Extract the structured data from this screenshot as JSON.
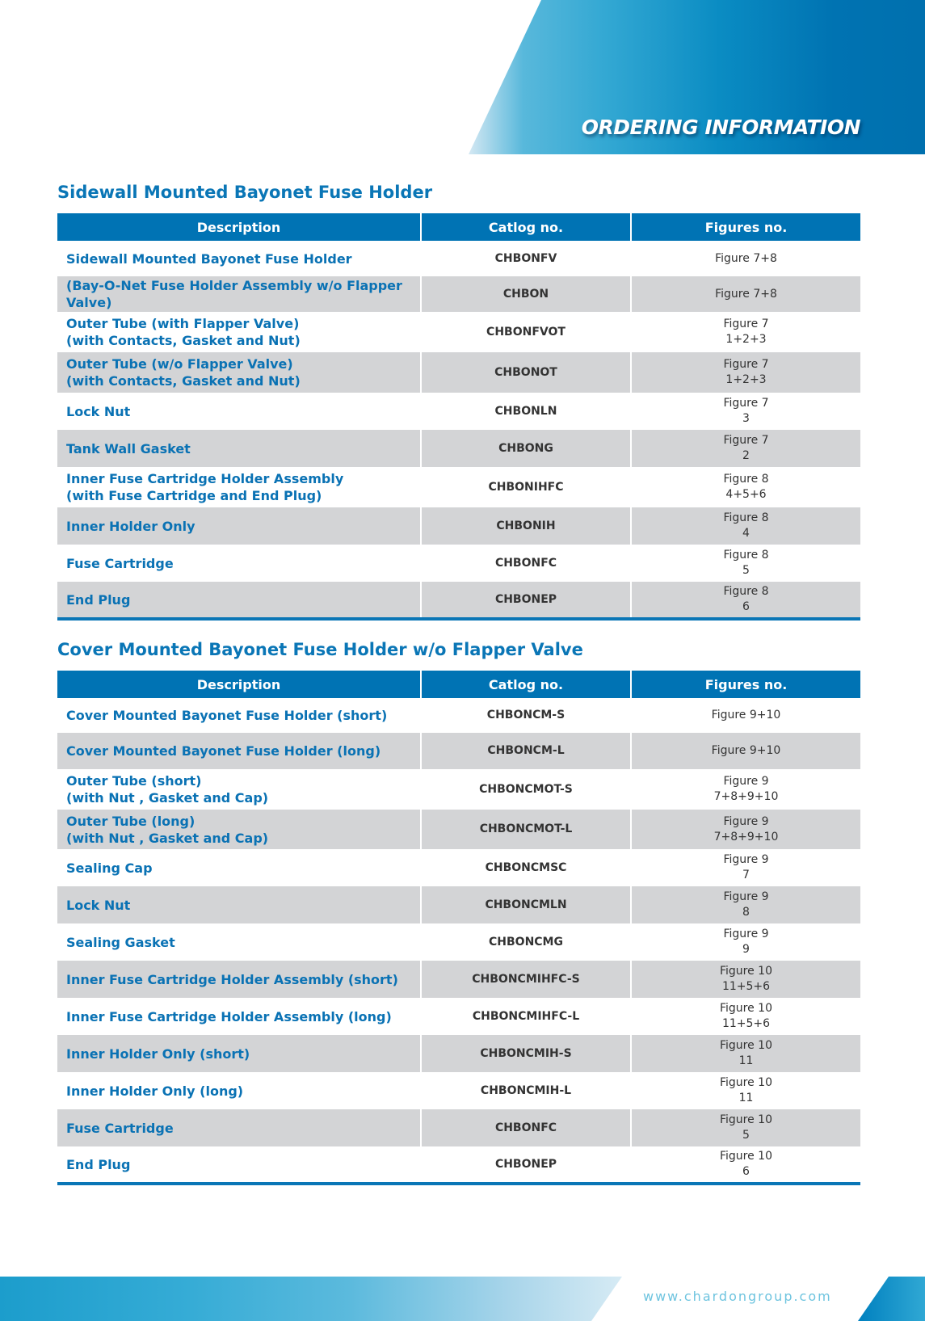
{
  "header": {
    "title": "ORDERING INFORMATION"
  },
  "colors": {
    "brand_blue": "#0073b4",
    "row_gray": "#d3d4d6"
  },
  "columns": [
    "Description",
    "Catlog no.",
    "Figures no."
  ],
  "tables": [
    {
      "title": "Sidewall Mounted Bayonet Fuse Holder",
      "rows": [
        {
          "desc": [
            "Sidewall Mounted Bayonet Fuse Holder"
          ],
          "cat": "CHBONFV",
          "fig": [
            "Figure 7+8"
          ]
        },
        {
          "desc": [
            "(Bay-O-Net Fuse Holder Assembly w/o Flapper Valve)"
          ],
          "cat": "CHBON",
          "fig": [
            "Figure 7+8"
          ]
        },
        {
          "desc": [
            "Outer Tube (with Flapper Valve)",
            "(with Contacts, Gasket and Nut)"
          ],
          "cat": "CHBONFVOT",
          "fig": [
            "Figure 7",
            "1+2+3"
          ]
        },
        {
          "desc": [
            "Outer Tube (w/o Flapper Valve)",
            "(with Contacts, Gasket and Nut)"
          ],
          "cat": "CHBONOT",
          "fig": [
            "Figure 7",
            "1+2+3"
          ]
        },
        {
          "desc": [
            "Lock Nut"
          ],
          "cat": "CHBONLN",
          "fig": [
            "Figure 7",
            "3"
          ]
        },
        {
          "desc": [
            "Tank Wall Gasket"
          ],
          "cat": "CHBONG",
          "fig": [
            "Figure 7",
            "2"
          ]
        },
        {
          "desc": [
            "Inner Fuse Cartridge Holder Assembly",
            "(with Fuse Cartridge and End Plug)"
          ],
          "cat": "CHBONIHFC",
          "fig": [
            "Figure 8",
            "4+5+6"
          ]
        },
        {
          "desc": [
            "Inner Holder Only"
          ],
          "cat": "CHBONIH",
          "fig": [
            "Figure 8",
            "4"
          ]
        },
        {
          "desc": [
            "Fuse Cartridge"
          ],
          "cat": "CHBONFC",
          "fig": [
            "Figure 8",
            "5"
          ]
        },
        {
          "desc": [
            "End Plug"
          ],
          "cat": "CHBONEP",
          "fig": [
            "Figure 8",
            "6"
          ]
        }
      ]
    },
    {
      "title": "Cover Mounted Bayonet Fuse Holder w/o Flapper Valve",
      "rows": [
        {
          "desc": [
            "Cover Mounted Bayonet Fuse Holder (short)"
          ],
          "cat": "CHBONCM-S",
          "fig": [
            "Figure 9+10"
          ]
        },
        {
          "desc": [
            "Cover Mounted Bayonet Fuse Holder (long)"
          ],
          "cat": "CHBONCM-L",
          "fig": [
            "Figure 9+10"
          ]
        },
        {
          "desc": [
            "Outer Tube (short)",
            "(with Nut , Gasket and Cap)"
          ],
          "cat": "CHBONCMOT-S",
          "fig": [
            "Figure 9",
            "7+8+9+10"
          ]
        },
        {
          "desc": [
            "Outer Tube (long)",
            "(with Nut , Gasket and Cap)"
          ],
          "cat": "CHBONCMOT-L",
          "fig": [
            "Figure 9",
            "7+8+9+10"
          ]
        },
        {
          "desc": [
            "Sealing Cap"
          ],
          "cat": "CHBONCMSC",
          "fig": [
            "Figure 9",
            "7"
          ]
        },
        {
          "desc": [
            "Lock Nut"
          ],
          "cat": "CHBONCMLN",
          "fig": [
            "Figure 9",
            "8"
          ]
        },
        {
          "desc": [
            "Sealing Gasket"
          ],
          "cat": "CHBONCMG",
          "fig": [
            "Figure 9",
            "9"
          ]
        },
        {
          "desc": [
            "Inner Fuse Cartridge Holder Assembly (short)"
          ],
          "cat": "CHBONCMIHFC-S",
          "fig": [
            "Figure 10",
            "11+5+6"
          ]
        },
        {
          "desc": [
            "Inner Fuse Cartridge Holder Assembly (long)"
          ],
          "cat": "CHBONCMIHFC-L",
          "fig": [
            "Figure 10",
            "11+5+6"
          ]
        },
        {
          "desc": [
            "Inner Holder Only (short)"
          ],
          "cat": "CHBONCMIH-S",
          "fig": [
            "Figure 10",
            "11"
          ]
        },
        {
          "desc": [
            "Inner Holder Only (long)"
          ],
          "cat": "CHBONCMIH-L",
          "fig": [
            "Figure 10",
            "11"
          ]
        },
        {
          "desc": [
            "Fuse Cartridge"
          ],
          "cat": "CHBONFC",
          "fig": [
            "Figure 10",
            "5"
          ]
        },
        {
          "desc": [
            "End Plug"
          ],
          "cat": "CHBONEP",
          "fig": [
            "Figure 10",
            "6"
          ]
        }
      ]
    }
  ],
  "footer": {
    "url": "www.chardongroup.com"
  }
}
